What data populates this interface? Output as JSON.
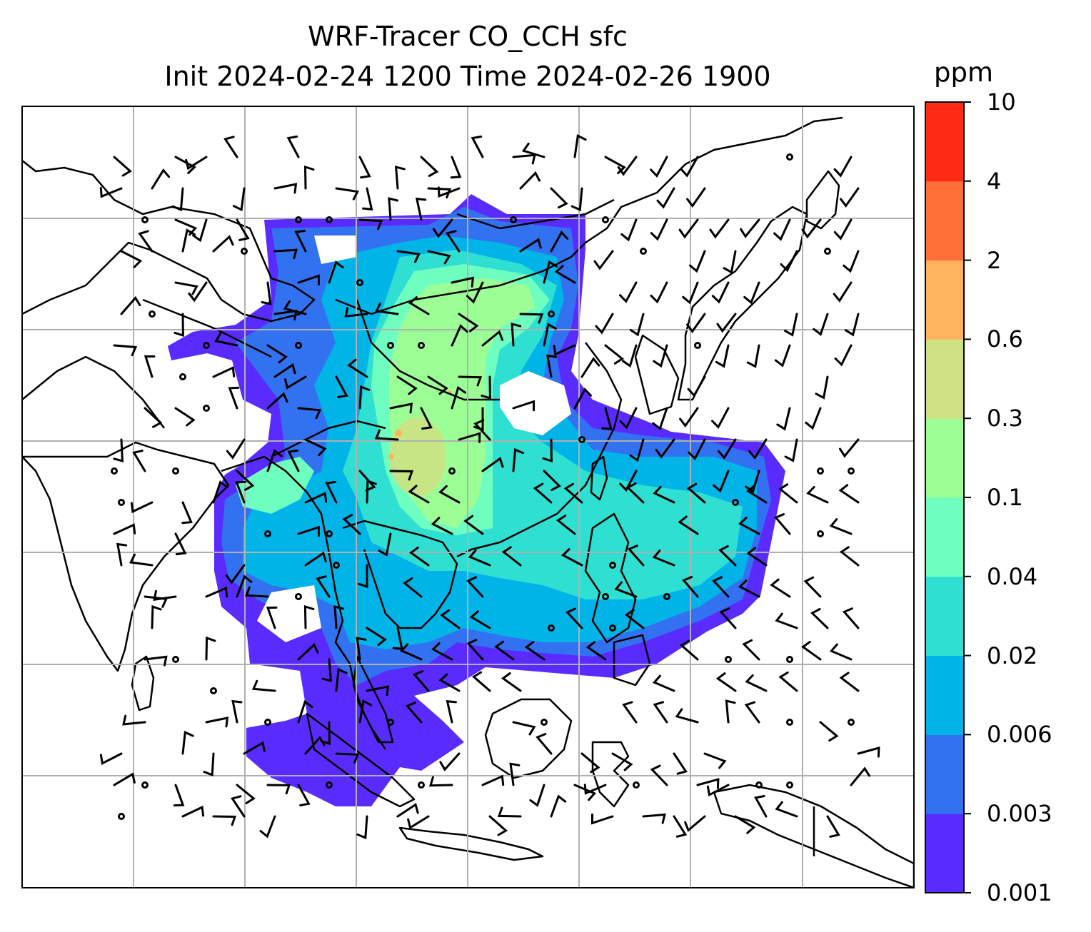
{
  "title": {
    "line1": "WRF-Tracer CO_CCH sfc",
    "line2": "Init 2024-02-24 1200 Time 2024-02-26 1900"
  },
  "colorbar": {
    "units": "ppm",
    "ticks": [
      "0.001",
      "0.003",
      "0.006",
      "0.02",
      "0.04",
      "0.1",
      "0.3",
      "0.6",
      "2",
      "4",
      "10"
    ],
    "colors": [
      "#5a2bff",
      "#3272f0",
      "#00b4e8",
      "#2fe0d2",
      "#6effc0",
      "#9cff96",
      "#cfe182",
      "#ffb35f",
      "#ff7038",
      "#ff2a14"
    ]
  },
  "map": {
    "gridlines": true,
    "field_name": "CO_CCH",
    "level": "sfc"
  }
}
